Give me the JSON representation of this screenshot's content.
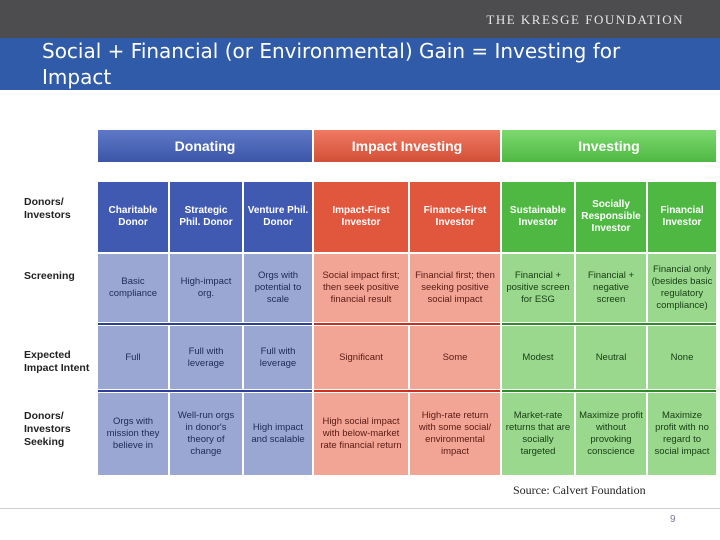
{
  "slide": {
    "brand": "THE KRESGE FOUNDATION",
    "title": "Social + Financial (or Environmental) Gain = Investing for Impact",
    "source": "Source: Calvert Foundation",
    "page_number": "9"
  },
  "colors": {
    "donating": "#3f5ab0",
    "impact_investing": "#e0573e",
    "investing": "#4fb843"
  },
  "table": {
    "headers": [
      "Donating",
      "Impact Investing",
      "Investing"
    ],
    "row_labels": [
      "Donors/ Investors",
      "Screening",
      "Expected Impact Intent",
      "Donors/ Investors Seeking"
    ],
    "columns": [
      {
        "group": "donating",
        "name": "Charitable Donor",
        "screening": "Basic compliance",
        "intent": "Full",
        "seeking": "Orgs with mission they believe in"
      },
      {
        "group": "donating",
        "name": "Strategic Phil. Donor",
        "screening": "High-impact org.",
        "intent": "Full with leverage",
        "seeking": "Well-run orgs in donor's theory of change"
      },
      {
        "group": "donating",
        "name": "Venture Phil. Donor",
        "screening": "Orgs with potential to scale",
        "intent": "Full with leverage",
        "seeking": "High impact and scalable"
      },
      {
        "group": "impact",
        "name": "Impact-First Investor",
        "screening": "Social impact first; then seek positive financial result",
        "intent": "Significant",
        "seeking": "High social impact with below-market rate financial return"
      },
      {
        "group": "impact",
        "name": "Finance-First Investor",
        "screening": "Financial first; then seeking positive social impact",
        "intent": "Some",
        "seeking": "High-rate return with some social/ environmental impact"
      },
      {
        "group": "investing",
        "name": "Sustainable Investor",
        "screening": "Financial + positive screen for ESG",
        "intent": "Modest",
        "seeking": "Market-rate returns that are socially targeted"
      },
      {
        "group": "investing",
        "name": "Socially Responsible Investor",
        "screening": "Financial + negative screen",
        "intent": "Neutral",
        "seeking": "Maximize profit without provoking conscience"
      },
      {
        "group": "investing",
        "name": "Financial Investor",
        "screening": "Financial only (besides basic regulatory compliance)",
        "intent": "None",
        "seeking": "Maximize profit with no regard to social impact"
      }
    ]
  }
}
